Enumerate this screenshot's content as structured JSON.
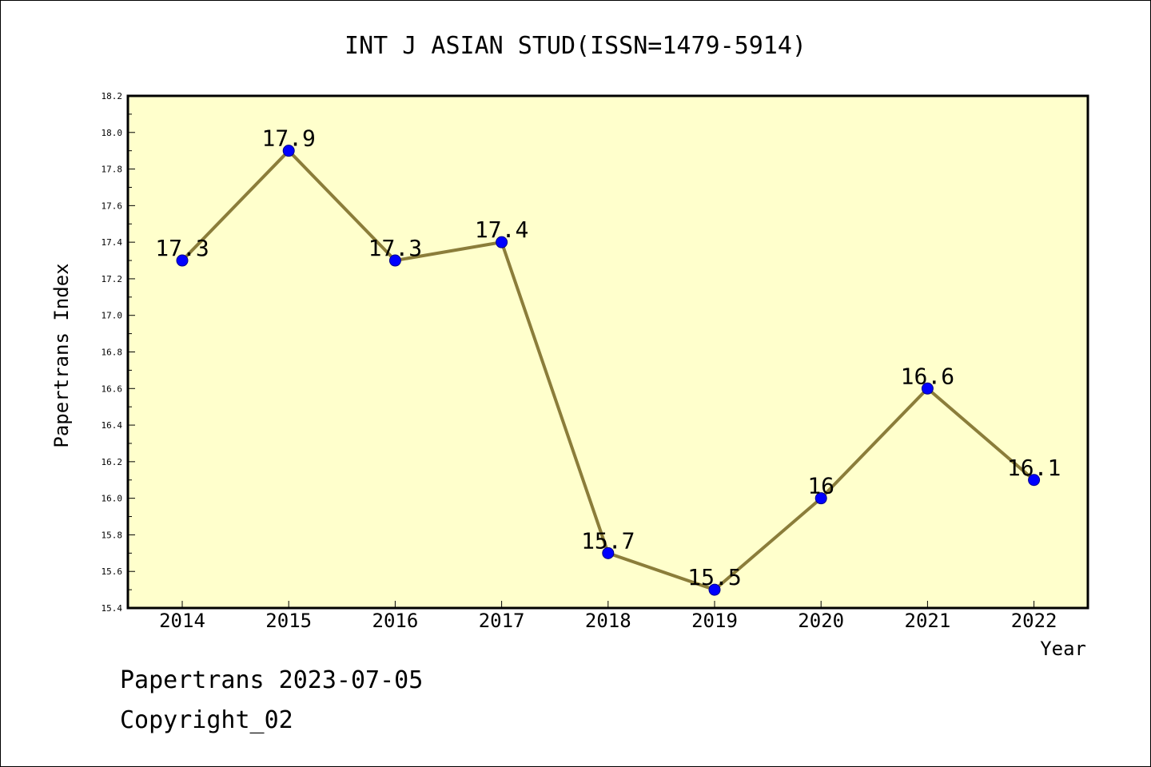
{
  "chart_data": {
    "type": "line",
    "title": "INT J ASIAN STUD(ISSN=1479-5914)",
    "xlabel": "Year",
    "ylabel": "Papertrans Index",
    "categories": [
      "2014",
      "2015",
      "2016",
      "2017",
      "2018",
      "2019",
      "2020",
      "2021",
      "2022"
    ],
    "series": [
      {
        "values": [
          17.3,
          17.9,
          17.3,
          17.4,
          15.7,
          15.5,
          16.0,
          16.6,
          16.1
        ],
        "labels": [
          "17.3",
          "17.9",
          "17.3",
          "17.4",
          "15.7",
          "15.5",
          "16",
          "16.6",
          "16.1"
        ]
      }
    ],
    "ylim": [
      15.4,
      18.2
    ],
    "yticks": [
      "15.4",
      "15.6",
      "15.8",
      "16.0",
      "16.2",
      "16.4",
      "16.6",
      "16.8",
      "17.0",
      "17.2",
      "17.4",
      "17.6",
      "17.8",
      "18.0",
      "18.2"
    ],
    "grid": false,
    "colors": {
      "plot_background": "#ffffcc",
      "line": "#8b7d3a",
      "marker": "#0000ff",
      "marker_edge": "#00008b"
    }
  },
  "footer": {
    "line1": "Papertrans 2023-07-05",
    "line2": "Copyright_02"
  }
}
